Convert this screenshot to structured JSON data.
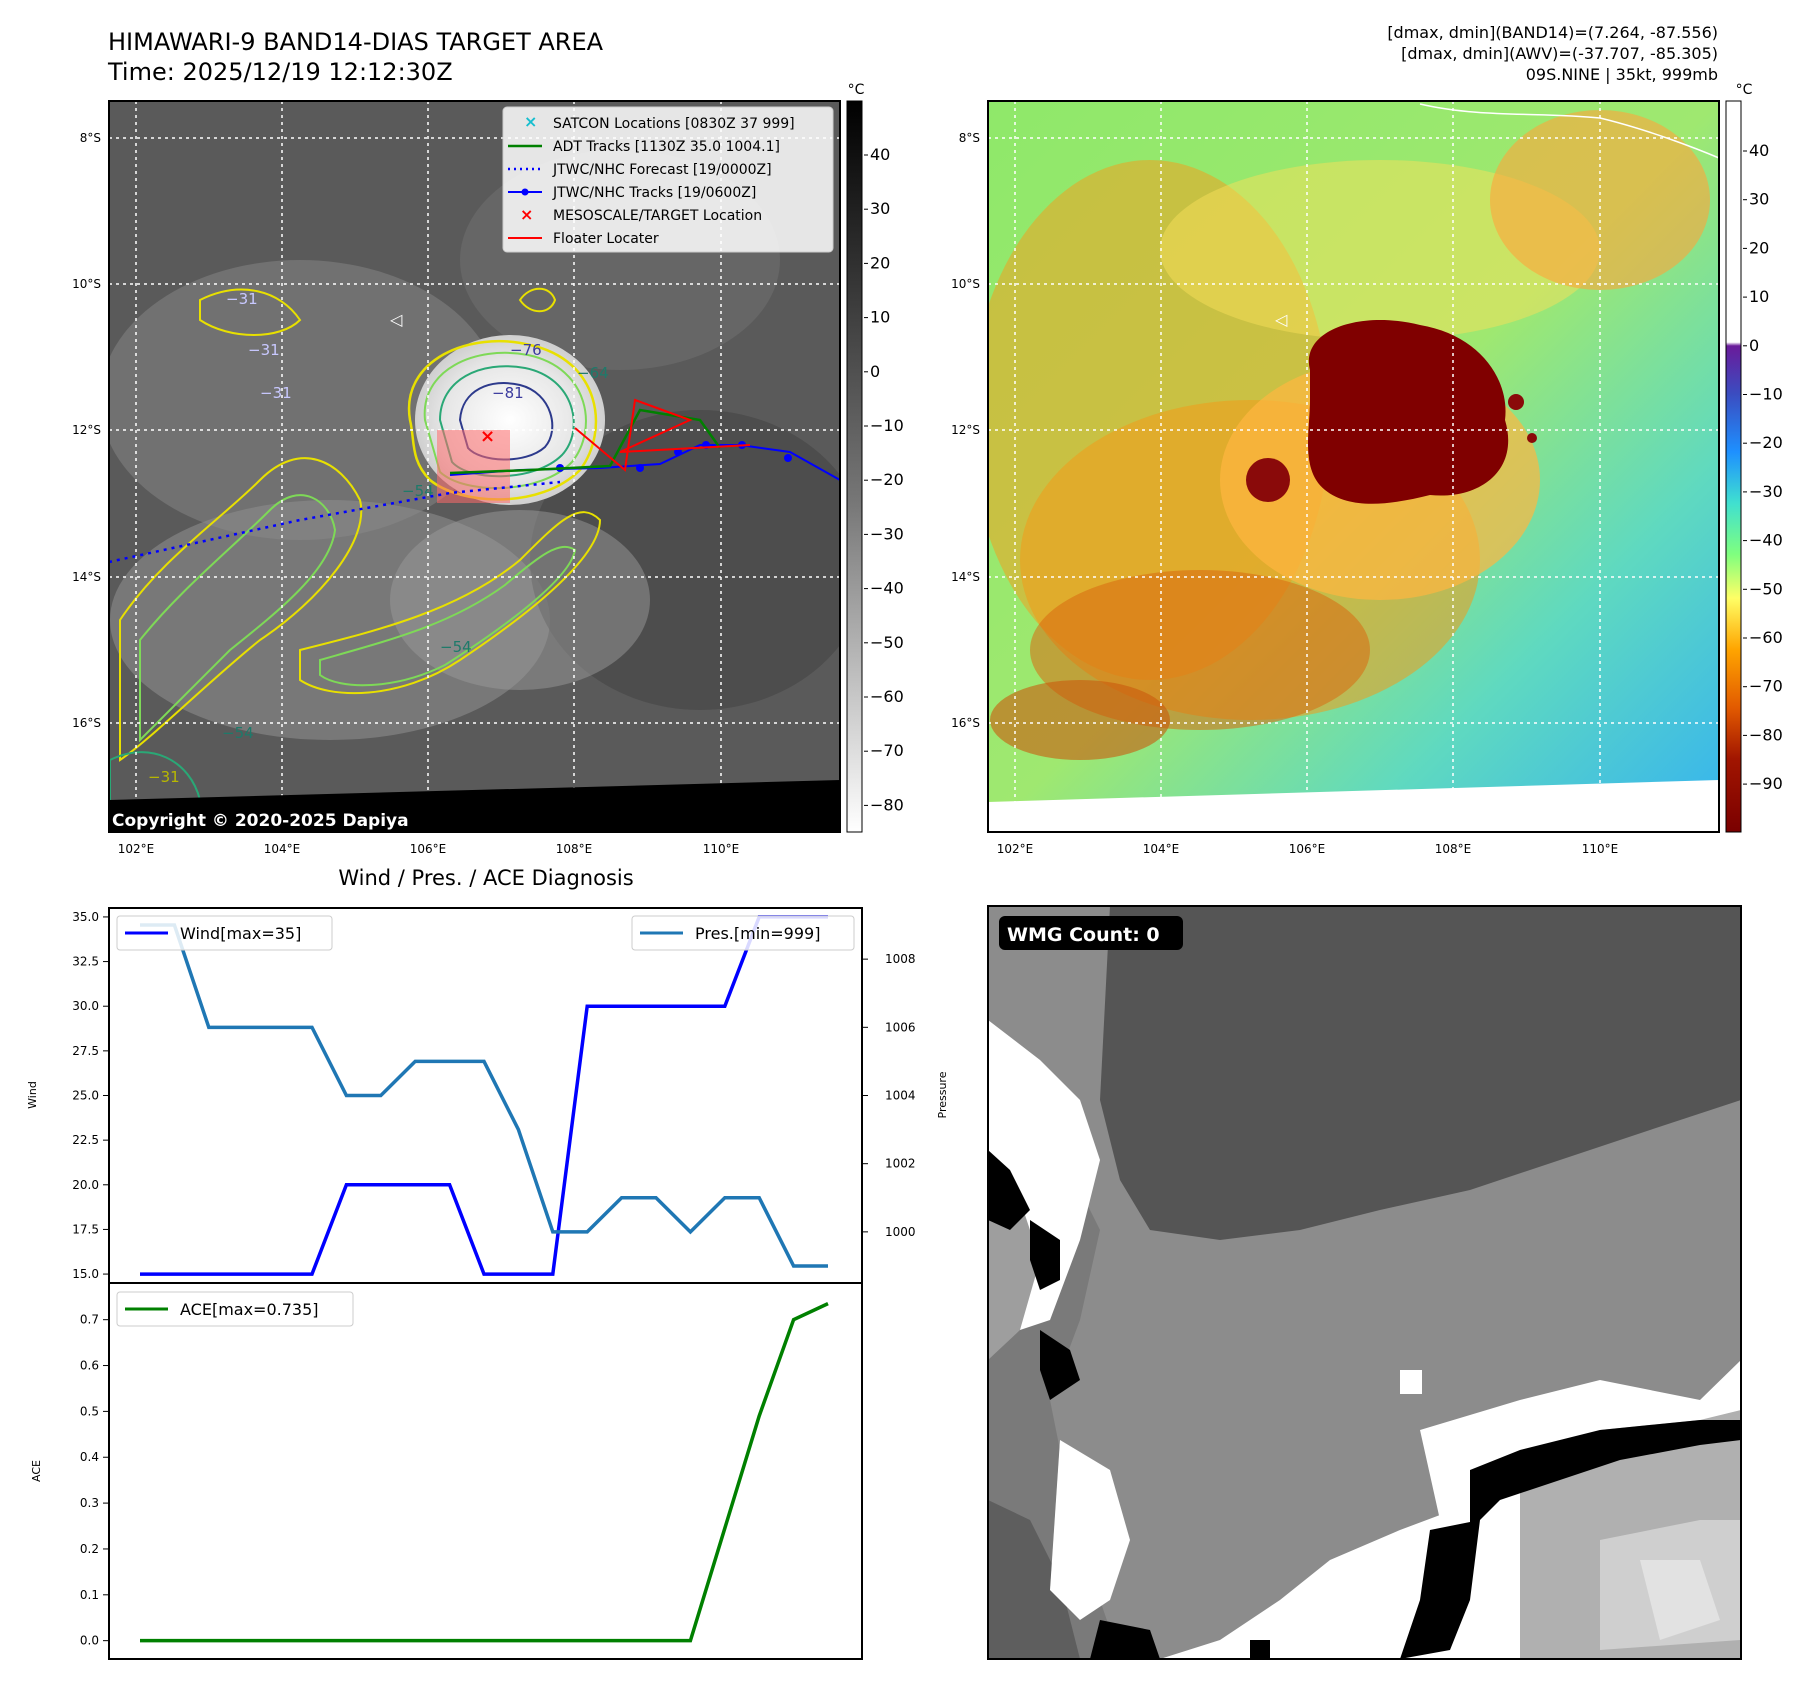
{
  "header": {
    "title_line1": "HIMAWARI-9 BAND14-DIAS TARGET AREA",
    "title_line2": "Time: 2025/12/19 12:12:30Z",
    "right_line1": "[dmax, dmin](BAND14)=(7.264, -87.556)",
    "right_line2": "[dmax, dmin](AWV)=(-37.707, -85.305)",
    "right_line3": "09S.NINE | 35kt, 999mb"
  },
  "colors": {
    "wind": "#0000ff",
    "pressure": "#1f77b4",
    "ace": "#008000",
    "forecast": "#0000ff",
    "adt": "#008000",
    "satcon": "#17becf",
    "target": "#ff0000"
  },
  "map_left": {
    "unit": "°C",
    "colorbar_ticks": [
      "40",
      "30",
      "20",
      "10",
      "0",
      "−10",
      "−20",
      "−30",
      "−40",
      "−50",
      "−60",
      "−70",
      "−80"
    ],
    "lat_labels": [
      "8°S",
      "10°S",
      "12°S",
      "14°S",
      "16°S"
    ],
    "lon_labels": [
      "102°E",
      "104°E",
      "106°E",
      "108°E",
      "110°E"
    ],
    "copyright": "Copyright © 2020-2025 Dapiya",
    "contour_labels": [
      "−31",
      "−31",
      "−31",
      "−76",
      "−81",
      "−64",
      "−54",
      "−54",
      "−54",
      "−31"
    ],
    "legend": [
      {
        "label": "SATCON Locations [0830Z 37 999]",
        "icon": "x-marker-icon"
      },
      {
        "label": "ADT Tracks [1130Z 35.0 1004.1]",
        "icon": "line-icon"
      },
      {
        "label": "JTWC/NHC Forecast [19/0000Z]",
        "icon": "dotted-line-icon"
      },
      {
        "label": "JTWC/NHC Tracks [19/0600Z]",
        "icon": "line-dot-icon"
      },
      {
        "label": "MESOSCALE/TARGET Location",
        "icon": "x-marker-icon"
      },
      {
        "label": "Floater Locater",
        "icon": "line-icon"
      }
    ]
  },
  "map_right": {
    "unit": "°C",
    "colorbar_ticks": [
      "40",
      "30",
      "20",
      "10",
      "0",
      "−10",
      "−20",
      "−30",
      "−40",
      "−50",
      "−60",
      "−70",
      "−80",
      "−90"
    ],
    "lat_labels": [
      "8°S",
      "10°S",
      "12°S",
      "14°S",
      "16°S"
    ],
    "lon_labels": [
      "102°E",
      "104°E",
      "106°E",
      "108°E",
      "110°E"
    ]
  },
  "wmg": {
    "badge": "WMG Count: 0"
  },
  "chart_data": [
    {
      "type": "line",
      "title": "Wind / Pres. / ACE Diagnosis",
      "ylabel": "Wind",
      "ylabel_right": "Pressure",
      "x": [
        0,
        1,
        2,
        3,
        4,
        5,
        6,
        7,
        8,
        9,
        10,
        11,
        12,
        13,
        14,
        15,
        16,
        17,
        18,
        19,
        20
      ],
      "series": [
        {
          "name": "Wind[max=35]",
          "axis": "left",
          "values": [
            15,
            15,
            15,
            15,
            15,
            15,
            20,
            20,
            20,
            20,
            15,
            15,
            15,
            30,
            30,
            30,
            30,
            30,
            35,
            35,
            35
          ]
        },
        {
          "name": "Pres.[min=999]",
          "axis": "right",
          "values": [
            1009,
            1009,
            1006,
            1006,
            1006,
            1006,
            1004,
            1004,
            1005,
            1005,
            1005,
            1003,
            1000,
            1000,
            1001,
            1001,
            1000,
            1001,
            1001,
            999,
            999
          ]
        }
      ],
      "ylim": [
        14.5,
        35.5
      ],
      "yticks": [
        "35.0",
        "32.5",
        "30.0",
        "27.5",
        "25.0",
        "22.5",
        "20.0",
        "17.5",
        "15.0"
      ],
      "ylim_right": [
        998.5,
        1009.5
      ],
      "yticks_right": [
        "1008",
        "1006",
        "1004",
        "1002",
        "1000"
      ]
    },
    {
      "type": "line",
      "ylabel": "ACE",
      "x": [
        0,
        1,
        2,
        3,
        4,
        5,
        6,
        7,
        8,
        9,
        10,
        11,
        12,
        13,
        14,
        15,
        16,
        17,
        18,
        19,
        20
      ],
      "series": [
        {
          "name": "ACE[max=0.735]",
          "values": [
            0,
            0,
            0,
            0,
            0,
            0,
            0,
            0,
            0,
            0,
            0,
            0,
            0,
            0,
            0,
            0,
            0,
            0.245,
            0.49,
            0.7,
            0.735
          ]
        }
      ],
      "ylim": [
        -0.04,
        0.78
      ],
      "yticks": [
        "0.7",
        "0.6",
        "0.5",
        "0.4",
        "0.3",
        "0.2",
        "0.1",
        "0.0"
      ]
    }
  ]
}
